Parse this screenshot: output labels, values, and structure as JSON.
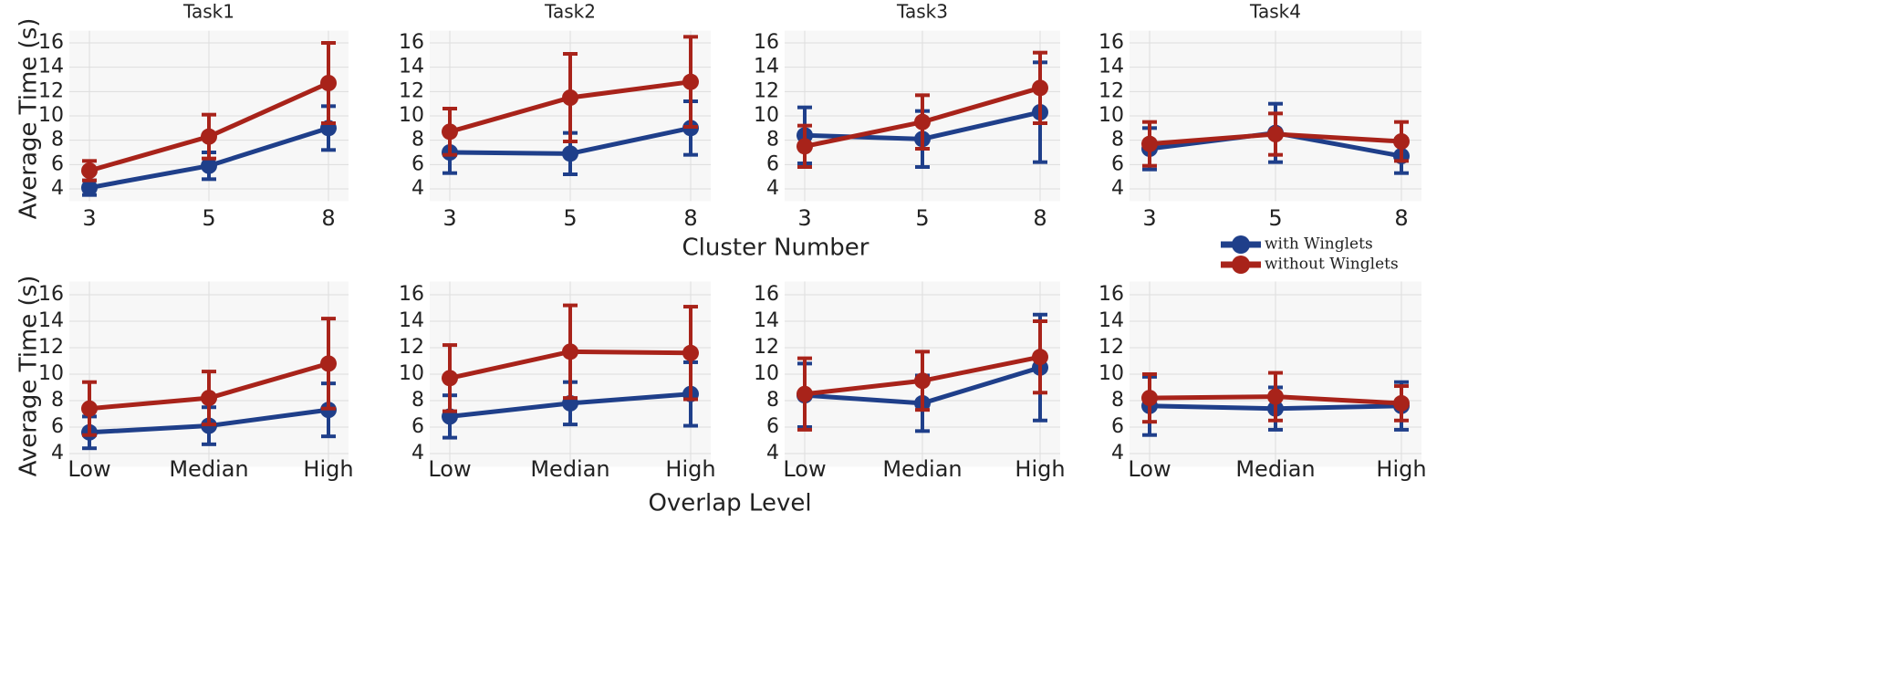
{
  "chart_data": [
    {
      "type": "line",
      "title": "Task1",
      "ylabel": "Average Time (s)",
      "categories": [
        "3",
        "5",
        "8"
      ],
      "ylim": [
        3,
        17
      ],
      "yticks": [
        4,
        6,
        8,
        10,
        12,
        14,
        16
      ],
      "grid": true,
      "series": [
        {
          "name": "with Winglets",
          "color": "#1f3f8a",
          "values": [
            4.1,
            5.9,
            9.0
          ],
          "errors": [
            0.6,
            1.1,
            1.8
          ]
        },
        {
          "name": "without Winglets",
          "color": "#a8231a",
          "values": [
            5.5,
            8.3,
            12.7
          ],
          "errors": [
            0.8,
            1.8,
            3.3
          ]
        }
      ]
    },
    {
      "type": "line",
      "title": "Task2",
      "xlabel": "Cluster Number",
      "categories": [
        "3",
        "5",
        "8"
      ],
      "ylim": [
        3,
        17
      ],
      "yticks": [
        4,
        6,
        8,
        10,
        12,
        14,
        16
      ],
      "grid": true,
      "series": [
        {
          "name": "with Winglets",
          "color": "#1f3f8a",
          "values": [
            7.0,
            6.9,
            9.0
          ],
          "errors": [
            1.7,
            1.7,
            2.2
          ]
        },
        {
          "name": "without Winglets",
          "color": "#a8231a",
          "values": [
            8.7,
            11.5,
            12.8
          ],
          "errors": [
            1.9,
            3.6,
            3.7
          ]
        }
      ]
    },
    {
      "type": "line",
      "title": "Task3",
      "categories": [
        "3",
        "5",
        "8"
      ],
      "ylim": [
        3,
        17
      ],
      "yticks": [
        4,
        6,
        8,
        10,
        12,
        14,
        16
      ],
      "grid": true,
      "series": [
        {
          "name": "with Winglets",
          "color": "#1f3f8a",
          "values": [
            8.4,
            8.1,
            10.3
          ],
          "errors": [
            2.3,
            2.3,
            4.1
          ]
        },
        {
          "name": "without Winglets",
          "color": "#a8231a",
          "values": [
            7.5,
            9.5,
            12.3
          ],
          "errors": [
            1.7,
            2.2,
            2.9
          ]
        }
      ]
    },
    {
      "type": "line",
      "title": "Task4",
      "categories": [
        "3",
        "5",
        "8"
      ],
      "ylim": [
        3,
        17
      ],
      "yticks": [
        4,
        6,
        8,
        10,
        12,
        14,
        16
      ],
      "grid": true,
      "series": [
        {
          "name": "with Winglets",
          "color": "#1f3f8a",
          "values": [
            7.3,
            8.6,
            6.7
          ],
          "errors": [
            1.7,
            2.4,
            1.4
          ]
        },
        {
          "name": "without Winglets",
          "color": "#a8231a",
          "values": [
            7.7,
            8.5,
            7.9
          ],
          "errors": [
            1.8,
            1.7,
            1.6
          ]
        }
      ]
    },
    {
      "type": "line",
      "ylabel": "Average Time (s)",
      "categories": [
        "Low",
        "Median",
        "High"
      ],
      "ylim": [
        3,
        17
      ],
      "yticks": [
        4,
        6,
        8,
        10,
        12,
        14,
        16
      ],
      "grid": true,
      "series": [
        {
          "name": "with Winglets",
          "color": "#1f3f8a",
          "values": [
            5.6,
            6.1,
            7.3
          ],
          "errors": [
            1.2,
            1.4,
            2.0
          ]
        },
        {
          "name": "without Winglets",
          "color": "#a8231a",
          "values": [
            7.4,
            8.2,
            10.8
          ],
          "errors": [
            2.0,
            2.0,
            3.4
          ]
        }
      ]
    },
    {
      "type": "line",
      "xlabel": "Overlap Level",
      "categories": [
        "Low",
        "Median",
        "High"
      ],
      "ylim": [
        3,
        17
      ],
      "yticks": [
        4,
        6,
        8,
        10,
        12,
        14,
        16
      ],
      "grid": true,
      "series": [
        {
          "name": "with Winglets",
          "color": "#1f3f8a",
          "values": [
            6.8,
            7.8,
            8.5
          ],
          "errors": [
            1.6,
            1.6,
            2.4
          ]
        },
        {
          "name": "without Winglets",
          "color": "#a8231a",
          "values": [
            9.7,
            11.7,
            11.6
          ],
          "errors": [
            2.5,
            3.5,
            3.5
          ]
        }
      ]
    },
    {
      "type": "line",
      "categories": [
        "Low",
        "Median",
        "High"
      ],
      "ylim": [
        3,
        17
      ],
      "yticks": [
        4,
        6,
        8,
        10,
        12,
        14,
        16
      ],
      "grid": true,
      "series": [
        {
          "name": "with Winglets",
          "color": "#1f3f8a",
          "values": [
            8.4,
            7.8,
            10.5
          ],
          "errors": [
            2.4,
            2.1,
            4.0
          ]
        },
        {
          "name": "without Winglets",
          "color": "#a8231a",
          "values": [
            8.5,
            9.5,
            11.3
          ],
          "errors": [
            2.7,
            2.2,
            2.7
          ]
        }
      ]
    },
    {
      "type": "line",
      "categories": [
        "Low",
        "Median",
        "High"
      ],
      "ylim": [
        3,
        17
      ],
      "yticks": [
        4,
        6,
        8,
        10,
        12,
        14,
        16
      ],
      "grid": true,
      "series": [
        {
          "name": "with Winglets",
          "color": "#1f3f8a",
          "values": [
            7.6,
            7.4,
            7.6
          ],
          "errors": [
            2.2,
            1.6,
            1.8
          ]
        },
        {
          "name": "without Winglets",
          "color": "#a8231a",
          "values": [
            8.2,
            8.3,
            7.8
          ],
          "errors": [
            1.8,
            1.8,
            1.3
          ]
        }
      ]
    }
  ]
}
